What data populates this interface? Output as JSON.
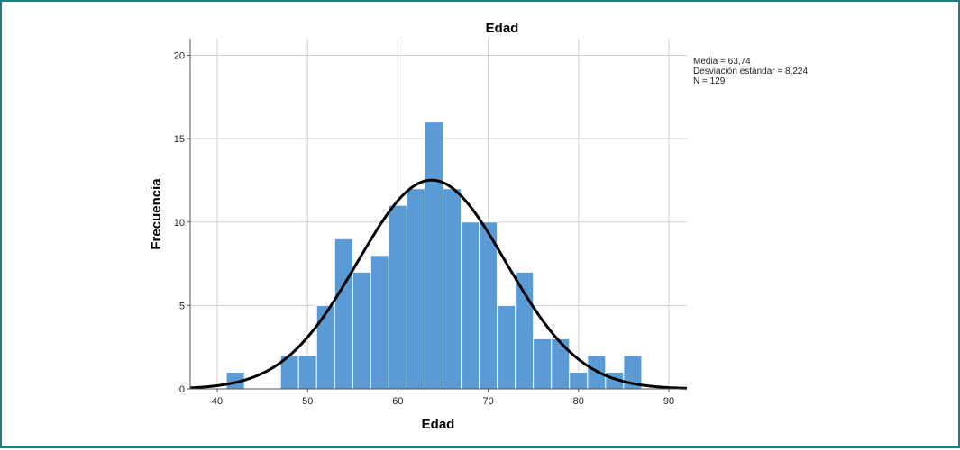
{
  "chart_data": {
    "type": "bar",
    "title": "Edad",
    "xlabel": "Edad",
    "ylabel": "Frecuencia",
    "xlim": [
      37,
      92
    ],
    "ylim": [
      0,
      21
    ],
    "xticks": [
      40,
      50,
      60,
      70,
      80,
      90
    ],
    "yticks": [
      0,
      5,
      10,
      15,
      20
    ],
    "grid": true,
    "bins": [
      {
        "start": 41,
        "end": 43,
        "count": 1
      },
      {
        "start": 43,
        "end": 45,
        "count": 0
      },
      {
        "start": 45,
        "end": 47,
        "count": 0
      },
      {
        "start": 47,
        "end": 49,
        "count": 2
      },
      {
        "start": 49,
        "end": 51,
        "count": 2
      },
      {
        "start": 51,
        "end": 53,
        "count": 5
      },
      {
        "start": 53,
        "end": 55,
        "count": 9
      },
      {
        "start": 55,
        "end": 57,
        "count": 7
      },
      {
        "start": 57,
        "end": 59,
        "count": 8
      },
      {
        "start": 59,
        "end": 61,
        "count": 11
      },
      {
        "start": 61,
        "end": 63,
        "count": 12
      },
      {
        "start": 63,
        "end": 65,
        "count": 16
      },
      {
        "start": 65,
        "end": 67,
        "count": 12
      },
      {
        "start": 67,
        "end": 69,
        "count": 10
      },
      {
        "start": 69,
        "end": 71,
        "count": 10
      },
      {
        "start": 71,
        "end": 73,
        "count": 5
      },
      {
        "start": 73,
        "end": 75,
        "count": 7
      },
      {
        "start": 75,
        "end": 77,
        "count": 3
      },
      {
        "start": 77,
        "end": 79,
        "count": 3
      },
      {
        "start": 79,
        "end": 81,
        "count": 1
      },
      {
        "start": 81,
        "end": 83,
        "count": 2
      },
      {
        "start": 83,
        "end": 85,
        "count": 1
      },
      {
        "start": 85,
        "end": 87,
        "count": 2
      }
    ],
    "normal_curve": {
      "mean": 63.74,
      "sd": 8.224,
      "n": 129,
      "bin_width": 2
    },
    "stats": [
      "Media = 63,74",
      "Desviación estándar = 8,224",
      "N = 129"
    ],
    "legend_placement": "top-right",
    "colors": {
      "bar": "#5b9bd5",
      "bar_edge": "#ffffff",
      "curve": "#000000",
      "grid": "#cfcfcf",
      "frame": "#1f7a82"
    }
  }
}
